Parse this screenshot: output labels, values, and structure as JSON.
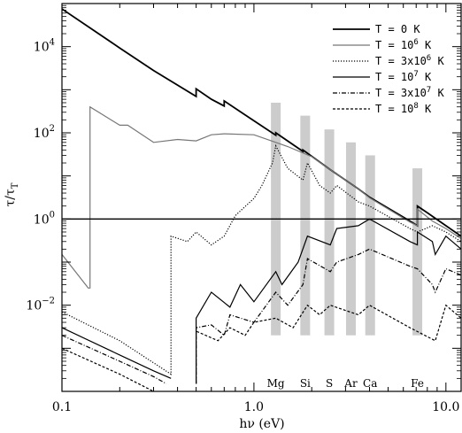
{
  "chart_data": {
    "type": "line",
    "title": "",
    "xlabel": "hν (eV)",
    "ylabel": "τ/τ_T",
    "x_scale": "log",
    "y_scale": "log",
    "xlim": [
      0.1,
      12
    ],
    "ylim": [
      0.0001,
      100000
    ],
    "grid": false,
    "legend_position": "top-right",
    "x_ticks": [
      {
        "value": 0.1,
        "label": "0.1"
      },
      {
        "value": 1,
        "label": "1.0"
      },
      {
        "value": 10,
        "label": "10.0"
      }
    ],
    "y_ticks": [
      {
        "value": 0.01,
        "base": "10",
        "exp": "−2"
      },
      {
        "value": 1,
        "base": "10",
        "exp": "0"
      },
      {
        "value": 100,
        "base": "10",
        "exp": "2"
      },
      {
        "value": 10000,
        "base": "10",
        "exp": "4"
      }
    ],
    "reference_line": {
      "y": 1
    },
    "series": [
      {
        "name": "T = 0 K",
        "color": "#000000",
        "dash": "solid",
        "points": [
          [
            0.1,
            75000
          ],
          [
            0.2,
            9300
          ],
          [
            0.3,
            2800
          ],
          [
            0.5,
            700
          ],
          [
            0.5,
            1050
          ],
          [
            0.6,
            600
          ],
          [
            0.7,
            420
          ],
          [
            0.7,
            550
          ],
          [
            1.0,
            190
          ],
          [
            1.3,
            88
          ],
          [
            1.3,
            100
          ],
          [
            1.8,
            37
          ],
          [
            1.8,
            40
          ],
          [
            2.5,
            14
          ],
          [
            3.5,
            5
          ],
          [
            4,
            3.2
          ],
          [
            6.5,
            0.9
          ],
          [
            7.1,
            0.7
          ],
          [
            7.1,
            2.0
          ],
          [
            8,
            1.4
          ],
          [
            10,
            0.7
          ],
          [
            12,
            0.4
          ]
        ]
      },
      {
        "name": "T = 10^6 K",
        "color": "#777777",
        "dash": "solid",
        "points": [
          [
            0.1,
            0.15
          ],
          [
            0.137,
            0.025
          ],
          [
            0.14,
            0.025
          ],
          [
            0.14,
            400
          ],
          [
            0.2,
            150
          ],
          [
            0.22,
            150
          ],
          [
            0.3,
            60
          ],
          [
            0.4,
            70
          ],
          [
            0.5,
            65
          ],
          [
            0.6,
            90
          ],
          [
            0.7,
            95
          ],
          [
            1.0,
            90
          ],
          [
            1.3,
            60
          ],
          [
            1.5,
            48
          ],
          [
            2,
            28
          ],
          [
            2.5,
            14
          ],
          [
            3.5,
            5
          ],
          [
            4,
            3.1
          ],
          [
            6.5,
            0.85
          ],
          [
            7.1,
            0.7
          ],
          [
            7.1,
            1.7
          ],
          [
            8.5,
            0.9
          ],
          [
            10,
            0.6
          ],
          [
            12,
            0.35
          ]
        ]
      },
      {
        "name": "T = 3x10^6 K",
        "color": "#000000",
        "dash": "1.2 1.8",
        "points": [
          [
            0.1,
            0.007
          ],
          [
            0.2,
            0.0015
          ],
          [
            0.37,
            0.00025
          ],
          [
            0.37,
            0.4
          ],
          [
            0.45,
            0.3
          ],
          [
            0.5,
            0.5
          ],
          [
            0.6,
            0.25
          ],
          [
            0.7,
            0.4
          ],
          [
            0.8,
            1.2
          ],
          [
            1.0,
            3
          ],
          [
            1.1,
            6
          ],
          [
            1.25,
            20
          ],
          [
            1.3,
            50
          ],
          [
            1.5,
            15
          ],
          [
            1.8,
            8
          ],
          [
            1.9,
            20
          ],
          [
            2.2,
            6
          ],
          [
            2.5,
            4
          ],
          [
            2.7,
            6
          ],
          [
            3.5,
            2.5
          ],
          [
            4,
            2
          ],
          [
            6.5,
            0.6
          ],
          [
            7.1,
            0.5
          ],
          [
            8.5,
            0.7
          ],
          [
            10,
            0.5
          ],
          [
            12,
            0.3
          ]
        ]
      },
      {
        "name": "T = 10^7 K",
        "color": "#000000",
        "dash": "solid",
        "points": [
          [
            0.1,
            0.003
          ],
          [
            0.2,
            0.0007
          ],
          [
            0.3,
            0.0003
          ],
          [
            0.37,
            0.0002
          ]
        ]
      },
      {
        "name": "T = 3x10^7 K",
        "color": "#000000",
        "dash": "5 2 1 2",
        "points": [
          [
            0.1,
            0.002
          ],
          [
            0.2,
            0.0005
          ],
          [
            0.3,
            0.00022
          ],
          [
            0.35,
            0.00015
          ]
        ]
      },
      {
        "name": "T = 10^8 K",
        "color": "#000000",
        "dash": "3 2",
        "points": [
          [
            0.1,
            0.001
          ],
          [
            0.2,
            0.00025
          ],
          [
            0.3,
            0.0001
          ]
        ]
      }
    ],
    "extra_curves": [
      {
        "group": "T = 10^7 K",
        "color": "#000000",
        "dash": "solid",
        "points": [
          [
            0.5,
            0.00015
          ],
          [
            0.5,
            0.005
          ],
          [
            0.6,
            0.02
          ],
          [
            0.75,
            0.009
          ],
          [
            0.85,
            0.03
          ],
          [
            1.0,
            0.012
          ],
          [
            1.3,
            0.06
          ],
          [
            1.4,
            0.03
          ],
          [
            1.7,
            0.1
          ],
          [
            1.9,
            0.4
          ],
          [
            2.5,
            0.25
          ],
          [
            2.7,
            0.6
          ],
          [
            3.5,
            0.7
          ],
          [
            4,
            1.0
          ],
          [
            6.5,
            0.3
          ],
          [
            7.1,
            0.25
          ],
          [
            7.1,
            0.5
          ],
          [
            8.5,
            0.3
          ],
          [
            8.8,
            0.15
          ],
          [
            10,
            0.4
          ],
          [
            12,
            0.2
          ]
        ]
      },
      {
        "group": "T = 3x10^7 K",
        "color": "#000000",
        "dash": "5 2 1 2",
        "points": [
          [
            0.5,
            0.00015
          ],
          [
            0.5,
            0.003
          ],
          [
            0.6,
            0.0035
          ],
          [
            0.7,
            0.002
          ],
          [
            0.75,
            0.006
          ],
          [
            1.0,
            0.004
          ],
          [
            1.3,
            0.02
          ],
          [
            1.5,
            0.01
          ],
          [
            1.8,
            0.03
          ],
          [
            1.9,
            0.12
          ],
          [
            2.5,
            0.06
          ],
          [
            2.7,
            0.1
          ],
          [
            3.5,
            0.15
          ],
          [
            4,
            0.2
          ],
          [
            6.5,
            0.08
          ],
          [
            7.1,
            0.07
          ],
          [
            8.5,
            0.03
          ],
          [
            8.8,
            0.02
          ],
          [
            10,
            0.07
          ],
          [
            12,
            0.05
          ]
        ]
      },
      {
        "group": "T = 10^8 K",
        "color": "#000000",
        "dash": "3 2",
        "points": [
          [
            0.5,
            0.00015
          ],
          [
            0.5,
            0.0025
          ],
          [
            0.65,
            0.0015
          ],
          [
            0.75,
            0.003
          ],
          [
            0.9,
            0.002
          ],
          [
            1.0,
            0.004
          ],
          [
            1.3,
            0.005
          ],
          [
            1.6,
            0.003
          ],
          [
            1.9,
            0.01
          ],
          [
            2.2,
            0.006
          ],
          [
            2.5,
            0.01
          ],
          [
            3.5,
            0.006
          ],
          [
            4,
            0.01
          ],
          [
            6.5,
            0.003
          ],
          [
            8.8,
            0.0015
          ],
          [
            10,
            0.01
          ],
          [
            12,
            0.005
          ]
        ]
      }
    ],
    "edge_bands": [
      {
        "label": "Mg",
        "x": 1.3,
        "y_top": 500
      },
      {
        "label": "Si",
        "x": 1.85,
        "y_top": 250
      },
      {
        "label": "S",
        "x": 2.47,
        "y_top": 120
      },
      {
        "label": "Ar",
        "x": 3.2,
        "y_top": 60
      },
      {
        "label": "Ca",
        "x": 4.03,
        "y_top": 30
      },
      {
        "label": "Fe",
        "x": 7.1,
        "y_top": 15
      }
    ],
    "edge_band_bottom": 0.002,
    "band_color": "#cccccc",
    "line_color": "#000000"
  }
}
